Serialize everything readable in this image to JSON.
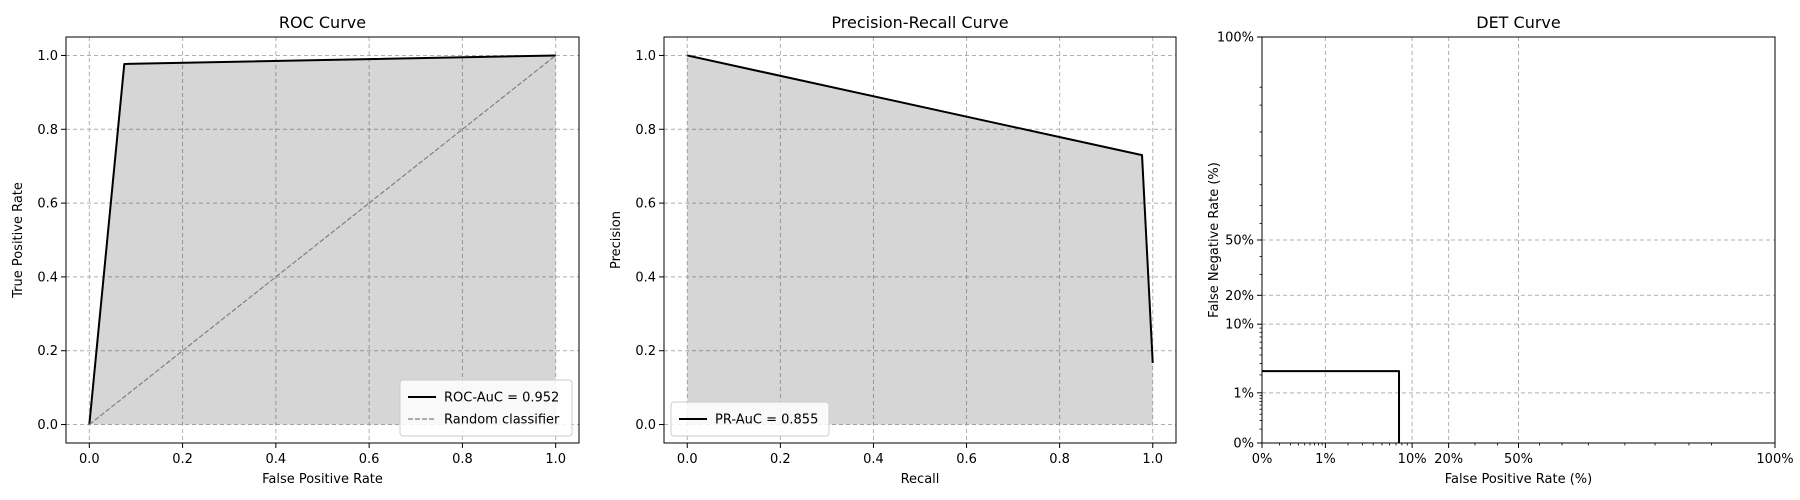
{
  "chart_data": [
    {
      "type": "line",
      "title": "ROC Curve",
      "xlabel": "False Positive Rate",
      "ylabel": "True Positive Rate",
      "xlim": [
        -0.05,
        1.05
      ],
      "ylim": [
        -0.05,
        1.05
      ],
      "xticks": [
        0.0,
        0.2,
        0.4,
        0.6,
        0.8,
        1.0
      ],
      "yticks": [
        0.0,
        0.2,
        0.4,
        0.6,
        0.8,
        1.0
      ],
      "tick_labels_x": [
        "0.0",
        "0.2",
        "0.4",
        "0.6",
        "0.8",
        "1.0"
      ],
      "tick_labels_y": [
        "0.0",
        "0.2",
        "0.4",
        "0.6",
        "0.8",
        "1.0"
      ],
      "grid": true,
      "legend_position": "lower-right",
      "series": [
        {
          "name": "ROC-AuC = 0.952",
          "x": [
            0.0,
            0.075,
            1.0
          ],
          "y": [
            0.0,
            0.977,
            1.0
          ],
          "fill": true,
          "color": "#000000",
          "style": "solid"
        },
        {
          "name": "Random classifier",
          "x": [
            0.0,
            1.0
          ],
          "y": [
            0.0,
            1.0
          ],
          "color": "#808080",
          "style": "dashed"
        }
      ]
    },
    {
      "type": "line",
      "title": "Precision-Recall Curve",
      "xlabel": "Recall",
      "ylabel": "Precision",
      "xlim": [
        -0.05,
        1.05
      ],
      "ylim": [
        -0.05,
        1.05
      ],
      "xticks": [
        0.0,
        0.2,
        0.4,
        0.6,
        0.8,
        1.0
      ],
      "yticks": [
        0.0,
        0.2,
        0.4,
        0.6,
        0.8,
        1.0
      ],
      "tick_labels_x": [
        "0.0",
        "0.2",
        "0.4",
        "0.6",
        "0.8",
        "1.0"
      ],
      "tick_labels_y": [
        "0.0",
        "0.2",
        "0.4",
        "0.6",
        "0.8",
        "1.0"
      ],
      "grid": true,
      "legend_position": "lower-left",
      "series": [
        {
          "name": "PR-AuC = 0.855",
          "x": [
            0.0,
            0.977,
            1.0
          ],
          "y": [
            1.0,
            0.73,
            0.167
          ],
          "fill": true,
          "color": "#000000",
          "style": "solid"
        }
      ]
    },
    {
      "type": "line",
      "title": "DET Curve",
      "xlabel": "False Positive Rate (%)",
      "ylabel": "False Negative Rate (%)",
      "scale": "normal-deviate",
      "xlim": [
        0.001,
        0.999
      ],
      "ylim": [
        0.001,
        0.999
      ],
      "xticks": [
        0.001,
        0.01,
        0.1,
        0.2,
        0.5,
        0.999
      ],
      "yticks": [
        0.001,
        0.01,
        0.1,
        0.2,
        0.5,
        0.999
      ],
      "tick_labels_x": [
        "0%",
        "1%",
        "10%",
        "20%",
        "50%",
        "100%"
      ],
      "tick_labels_y": [
        "0%",
        "1%",
        "10%",
        "20%",
        "50%",
        "100%"
      ],
      "grid": true,
      "series": [
        {
          "x": [
            0.001,
            0.075,
            0.075
          ],
          "y": [
            0.023,
            0.023,
            0.001
          ],
          "color": "#000000",
          "style": "solid"
        }
      ]
    }
  ]
}
